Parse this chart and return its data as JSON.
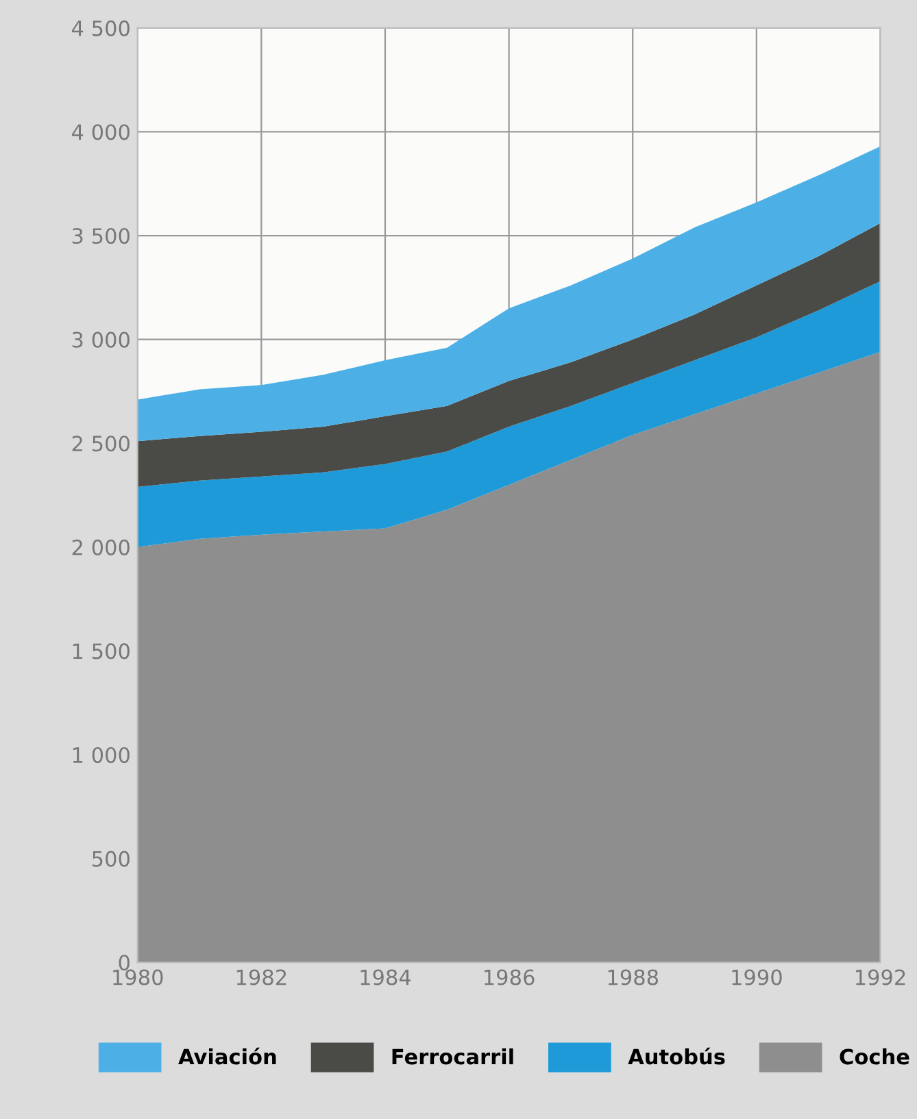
{
  "chart_data": {
    "type": "area",
    "stacked": true,
    "x": [
      1980,
      1981,
      1982,
      1983,
      1984,
      1985,
      1986,
      1987,
      1988,
      1989,
      1990,
      1991,
      1992
    ],
    "series": [
      {
        "name": "Coche",
        "color": "#8e8e8e",
        "values": [
          2000,
          2040,
          2060,
          2075,
          2090,
          2180,
          2300,
          2420,
          2540,
          2640,
          2740,
          2840,
          2940
        ]
      },
      {
        "name": "Autobús",
        "color": "#1e9ad8",
        "values": [
          290,
          280,
          280,
          285,
          310,
          280,
          280,
          260,
          250,
          260,
          270,
          300,
          340
        ]
      },
      {
        "name": "Ferrocarril",
        "color": "#4a4a46",
        "values": [
          220,
          215,
          215,
          220,
          230,
          220,
          220,
          210,
          210,
          220,
          250,
          260,
          280
        ]
      },
      {
        "name": "Aviación",
        "color": "#4cb0e6",
        "values": [
          200,
          225,
          225,
          250,
          270,
          280,
          350,
          370,
          390,
          420,
          400,
          390,
          370
        ]
      }
    ],
    "xlim": [
      1980,
      1992
    ],
    "xticks": [
      1980,
      1982,
      1984,
      1986,
      1988,
      1990,
      1992
    ],
    "ylim": [
      0,
      4500
    ],
    "yticks": [
      0,
      {
        "value": 500,
        "label": "500"
      },
      {
        "value": 1000,
        "label": "1 000"
      },
      {
        "value": 1500,
        "label": "1 500"
      },
      {
        "value": 2000,
        "label": "2 000"
      },
      {
        "value": 2500,
        "label": "2 500"
      },
      {
        "value": 3000,
        "label": "3 000"
      },
      {
        "value": 3500,
        "label": "3 500"
      },
      {
        "value": 4000,
        "label": "4 000"
      },
      {
        "value": 4500,
        "label": "4 500"
      }
    ],
    "grid": true,
    "legend": "bottom"
  }
}
